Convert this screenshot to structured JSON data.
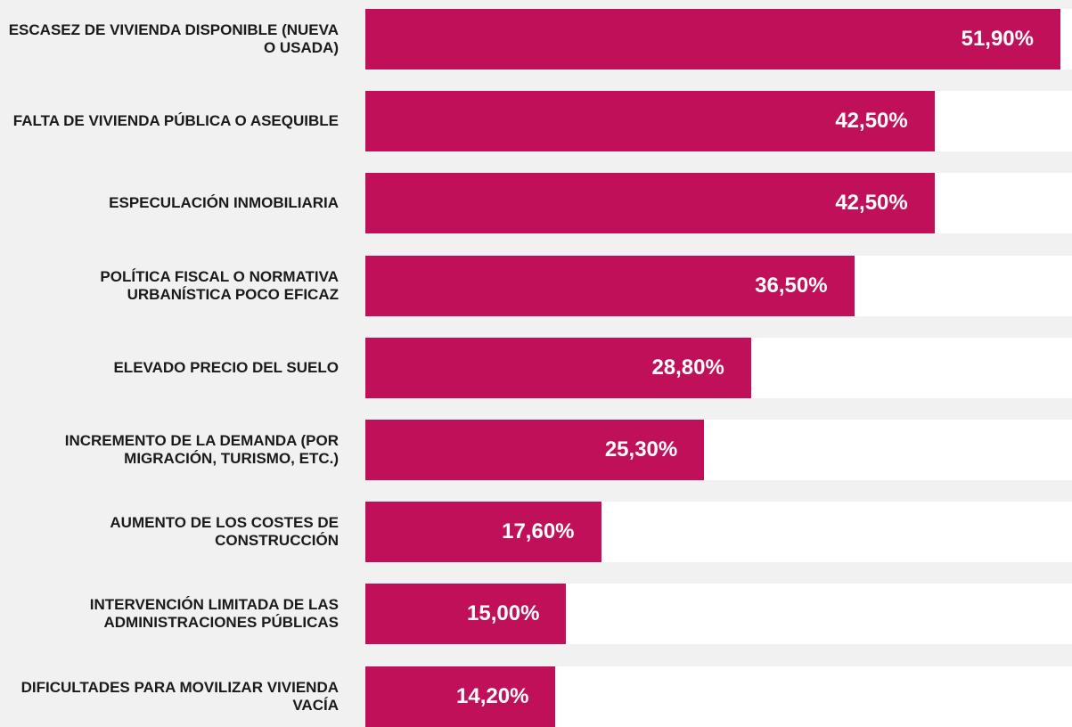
{
  "chart_data": {
    "type": "bar",
    "orientation": "horizontal",
    "color": "#c0105a",
    "categories": [
      "ESCASEZ DE VIVIENDA DISPONIBLE (NUEVA O USADA)",
      "FALTA DE VIVIENDA PÚBLICA O ASEQUIBLE",
      "ESPECULACIÓN INMOBILIARIA",
      "POLÍTICA FISCAL O NORMATIVA URBANÍSTICA POCO EFICAZ",
      "ELEVADO PRECIO DEL SUELO",
      "INCREMENTO DE LA DEMANDA (POR MIGRACIÓN, TURISMO, ETC.)",
      "AUMENTO DE LOS COSTES DE CONSTRUCCIÓN",
      "INTERVENCIÓN LIMITADA DE LAS ADMINISTRACIONES PÚBLICAS",
      "DIFICULTADES PARA MOVILIZAR VIVIENDA VACÍA"
    ],
    "values": [
      51.9,
      42.5,
      42.5,
      36.5,
      28.8,
      25.3,
      17.6,
      15.0,
      14.2
    ],
    "value_labels": [
      "51,90%",
      "42,50%",
      "42,50%",
      "36,50%",
      "28,80%",
      "25,30%",
      "17,60%",
      "15,00%",
      "14,20%"
    ]
  }
}
